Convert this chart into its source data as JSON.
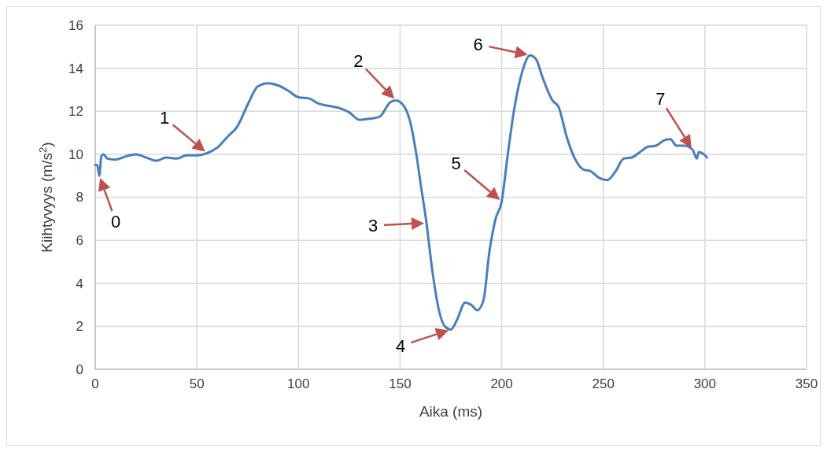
{
  "chart_data": {
    "type": "line",
    "xlabel": "Aika (ms)",
    "ylabel": "Kiihtyvyys (m/s$^{2}$)",
    "xlim": [
      0,
      350
    ],
    "xticks": [
      0,
      50,
      100,
      150,
      200,
      250,
      300,
      350
    ],
    "ylim": [
      0,
      16
    ],
    "yticks": [
      0,
      2,
      4,
      6,
      8,
      10,
      12,
      14,
      16
    ],
    "grid": true,
    "series": [
      {
        "color": "#4a7ebb",
        "x": [
          0,
          1,
          2,
          3,
          4,
          6,
          10,
          15,
          20,
          25,
          30,
          35,
          40,
          45,
          50,
          55,
          60,
          65,
          70,
          75,
          80,
          85,
          90,
          95,
          100,
          105,
          110,
          115,
          120,
          125,
          130,
          135,
          140,
          145,
          148,
          151,
          155,
          158,
          160,
          163,
          166,
          169,
          172,
          175,
          178,
          182,
          185,
          188,
          191,
          194,
          197,
          200,
          203,
          206,
          210,
          214,
          217,
          220,
          225,
          228,
          232,
          236,
          240,
          244,
          248,
          252,
          256,
          260,
          264,
          268,
          272,
          276,
          280,
          283,
          286,
          290,
          294,
          296,
          297,
          300,
          301
        ],
        "values": [
          9.5,
          9.5,
          9.0,
          9.9,
          10.0,
          9.8,
          9.75,
          9.9,
          10.0,
          9.85,
          9.7,
          9.85,
          9.8,
          9.95,
          9.95,
          10.05,
          10.3,
          10.8,
          11.3,
          12.3,
          13.15,
          13.3,
          13.2,
          12.95,
          12.65,
          12.6,
          12.35,
          12.25,
          12.15,
          11.95,
          11.6,
          11.65,
          11.75,
          12.4,
          12.5,
          12.35,
          11.5,
          10.0,
          8.7,
          6.8,
          4.5,
          2.8,
          2.0,
          1.85,
          2.3,
          3.1,
          3.0,
          2.75,
          3.2,
          5.5,
          7.0,
          7.8,
          10.0,
          12.0,
          13.8,
          14.6,
          14.4,
          13.6,
          12.5,
          12.2,
          10.8,
          9.8,
          9.3,
          9.2,
          8.9,
          8.8,
          9.2,
          9.8,
          9.85,
          10.1,
          10.35,
          10.4,
          10.65,
          10.7,
          10.4,
          10.4,
          10.2,
          9.8,
          10.1,
          9.95,
          9.85
        ]
      }
    ],
    "annotations": [
      {
        "text": "0",
        "x": 2,
        "y": 9.0
      },
      {
        "text": "1",
        "x": 55,
        "y": 10.05
      },
      {
        "text": "2",
        "x": 148,
        "y": 12.5
      },
      {
        "text": "3",
        "x": 163,
        "y": 6.8
      },
      {
        "text": "4",
        "x": 175,
        "y": 1.85
      },
      {
        "text": "5",
        "x": 200,
        "y": 7.8
      },
      {
        "text": "6",
        "x": 214,
        "y": 14.6
      },
      {
        "text": "7",
        "x": 294,
        "y": 10.2
      }
    ],
    "marker": "none",
    "line_style": "solid"
  }
}
